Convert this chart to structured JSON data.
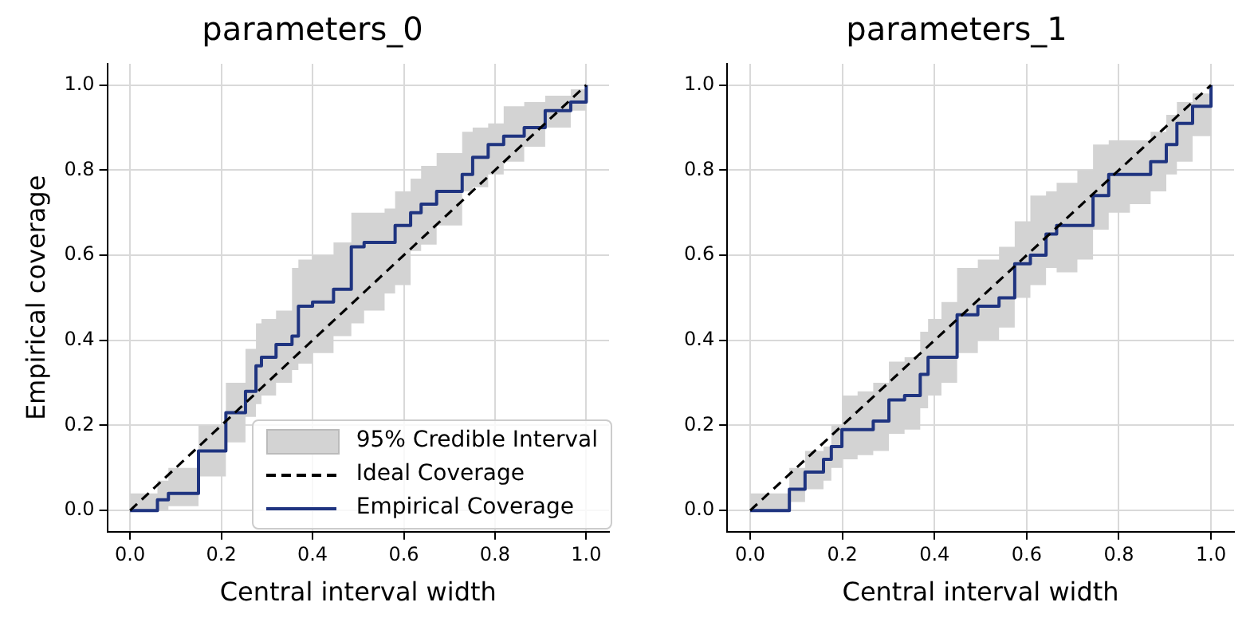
{
  "chart_data": [
    {
      "type": "step",
      "title": "parameters_0",
      "xlabel": "Central interval width",
      "ylabel": "Empirical coverage",
      "xlim": [
        -0.05,
        1.05
      ],
      "ylim": [
        -0.05,
        1.05
      ],
      "xticks": [
        {
          "value": 0,
          "label": "0.0"
        },
        {
          "value": 0.2,
          "label": "0.2"
        },
        {
          "value": 0.4,
          "label": "0.4"
        },
        {
          "value": 0.6,
          "label": "0.6"
        },
        {
          "value": 0.8,
          "label": "0.8"
        },
        {
          "value": 1,
          "label": "1.0"
        }
      ],
      "yticks": [
        {
          "value": 0,
          "label": "0.0"
        },
        {
          "value": 0.2,
          "label": "0.2"
        },
        {
          "value": 0.4,
          "label": "0.4"
        },
        {
          "value": 0.6,
          "label": "0.6"
        },
        {
          "value": 0.8,
          "label": "0.8"
        },
        {
          "value": 1,
          "label": "1.0"
        }
      ],
      "grid": true,
      "legend": "bottom right",
      "series": [
        {
          "name": "95% Credible Interval",
          "type": "area",
          "color": "#d3d3d3"
        },
        {
          "name": "Ideal Coverage",
          "type": "line",
          "color": "#000000",
          "line_style": "dashed",
          "x": [
            0,
            1
          ],
          "values": [
            0,
            1
          ]
        },
        {
          "name": "Empirical Coverage",
          "color": "#1f3480",
          "x": [
            0,
            0.06,
            0.084,
            0.15,
            0.21,
            0.253,
            0.276,
            0.288,
            0.32,
            0.355,
            0.369,
            0.4,
            0.446,
            0.485,
            0.513,
            0.558,
            0.581,
            0.615,
            0.638,
            0.672,
            0.728,
            0.751,
            0.785,
            0.819,
            0.864,
            0.91,
            0.966,
            1
          ],
          "lower": [
            0,
            0,
            0.01,
            0.08,
            0.16,
            0.22,
            0.25,
            0.27,
            0.3,
            0.33,
            0.345,
            0.37,
            0.41,
            0.44,
            0.47,
            0.51,
            0.53,
            0.61,
            0.625,
            0.67,
            0.75,
            0.76,
            0.79,
            0.82,
            0.855,
            0.9,
            0.94,
            1
          ],
          "upper": [
            0.04,
            0.07,
            0.1,
            0.2,
            0.3,
            0.38,
            0.44,
            0.45,
            0.47,
            0.57,
            0.59,
            0.6,
            0.63,
            0.7,
            0.7,
            0.71,
            0.75,
            0.78,
            0.81,
            0.84,
            0.89,
            0.9,
            0.91,
            0.95,
            0.96,
            0.975,
            0.99,
            1
          ],
          "values": [
            0,
            0.025,
            0.04,
            0.14,
            0.23,
            0.28,
            0.34,
            0.36,
            0.39,
            0.41,
            0.48,
            0.49,
            0.52,
            0.62,
            0.63,
            0.63,
            0.67,
            0.7,
            0.72,
            0.75,
            0.79,
            0.83,
            0.86,
            0.88,
            0.9,
            0.94,
            0.96,
            1
          ]
        }
      ]
    },
    {
      "type": "step",
      "title": "parameters_1",
      "xlabel": "Central interval width",
      "xlim": [
        -0.05,
        1.05
      ],
      "ylim": [
        -0.05,
        1.05
      ],
      "xticks": [
        {
          "value": 0,
          "label": "0.0"
        },
        {
          "value": 0.2,
          "label": "0.2"
        },
        {
          "value": 0.4,
          "label": "0.4"
        },
        {
          "value": 0.6,
          "label": "0.6"
        },
        {
          "value": 0.8,
          "label": "0.8"
        },
        {
          "value": 1,
          "label": "1.0"
        }
      ],
      "yticks": [
        {
          "value": 0,
          "label": "0.0"
        },
        {
          "value": 0.2,
          "label": "0.2"
        },
        {
          "value": 0.4,
          "label": "0.4"
        },
        {
          "value": 0.6,
          "label": "0.6"
        },
        {
          "value": 0.8,
          "label": "0.8"
        },
        {
          "value": 1,
          "label": "1.0"
        }
      ],
      "grid": true,
      "series": [
        {
          "type": "area",
          "color": "#d3d3d3"
        },
        {
          "type": "line",
          "color": "#000000",
          "line_style": "dashed",
          "x": [
            0,
            1
          ],
          "values": [
            0,
            1
          ]
        },
        {
          "color": "#1f3480",
          "x": [
            0,
            0.051,
            0.085,
            0.119,
            0.159,
            0.176,
            0.199,
            0.233,
            0.267,
            0.301,
            0.335,
            0.369,
            0.386,
            0.415,
            0.449,
            0.494,
            0.54,
            0.574,
            0.608,
            0.642,
            0.665,
            0.71,
            0.744,
            0.778,
            0.824,
            0.869,
            0.903,
            0.926,
            0.96,
            1
          ],
          "lower": [
            0,
            0,
            0.02,
            0.05,
            0.07,
            0.1,
            0.12,
            0.13,
            0.14,
            0.18,
            0.19,
            0.24,
            0.27,
            0.3,
            0.37,
            0.4,
            0.43,
            0.5,
            0.53,
            0.57,
            0.56,
            0.59,
            0.66,
            0.7,
            0.72,
            0.75,
            0.79,
            0.82,
            0.88,
            1
          ],
          "upper": [
            0.04,
            0.04,
            0.1,
            0.14,
            0.15,
            0.2,
            0.27,
            0.28,
            0.3,
            0.35,
            0.36,
            0.42,
            0.45,
            0.49,
            0.57,
            0.59,
            0.62,
            0.68,
            0.74,
            0.75,
            0.77,
            0.8,
            0.86,
            0.87,
            0.87,
            0.89,
            0.93,
            0.96,
            0.98,
            1
          ],
          "values": [
            0,
            0,
            0.05,
            0.09,
            0.12,
            0.15,
            0.19,
            0.19,
            0.21,
            0.26,
            0.27,
            0.32,
            0.36,
            0.36,
            0.46,
            0.48,
            0.5,
            0.58,
            0.6,
            0.65,
            0.67,
            0.67,
            0.74,
            0.79,
            0.79,
            0.82,
            0.86,
            0.91,
            0.95,
            1
          ]
        }
      ]
    }
  ]
}
